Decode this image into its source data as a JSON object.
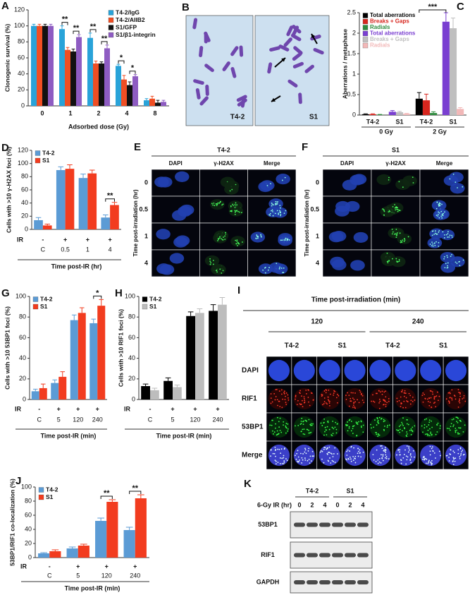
{
  "chart_data": [
    {
      "type": "bar",
      "panel": "A",
      "ylabel": "Clonogenic survival (%)",
      "xlabel": "Adsorbed dose (Gy)",
      "categories": [
        "0",
        "1",
        "2",
        "4",
        "8"
      ],
      "ylim": [
        0,
        120
      ],
      "yticks": [
        0,
        20,
        40,
        60,
        80,
        100,
        120
      ],
      "legend": "top-right",
      "series": [
        {
          "name": "T4-2/IgG",
          "color": "#29a3d9",
          "values": [
            100,
            96,
            85,
            50,
            7
          ],
          "errors": [
            2,
            4,
            6,
            2,
            2
          ]
        },
        {
          "name": "T4-2/AIIB2",
          "color": "#f04e23",
          "values": [
            100,
            70,
            53,
            33,
            9
          ],
          "errors": [
            2,
            3,
            3,
            5,
            3
          ]
        },
        {
          "name": "S1/GFP",
          "color": "#111111",
          "values": [
            100,
            68,
            53,
            26,
            4
          ],
          "errors": [
            2,
            3,
            2,
            4,
            3
          ]
        },
        {
          "name": "S1/β1-integrin",
          "color": "#8e5cc2",
          "values": [
            100,
            86,
            72,
            37,
            5
          ],
          "errors": [
            2,
            3,
            4,
            2,
            2
          ]
        }
      ],
      "annotations": [
        {
          "text": "**",
          "category": 1,
          "series": [
            0,
            1
          ]
        },
        {
          "text": "**",
          "category": 1,
          "series": [
            2,
            3
          ]
        },
        {
          "text": "**",
          "category": 2,
          "series": [
            0,
            1
          ]
        },
        {
          "text": "**",
          "category": 2,
          "series": [
            2,
            3
          ]
        },
        {
          "text": "*",
          "category": 3,
          "series": [
            0,
            1
          ]
        },
        {
          "text": "*",
          "category": 3,
          "series": [
            2,
            3
          ]
        }
      ]
    },
    {
      "type": "bar",
      "panel": "C",
      "ylabel": "Aberrations / metaphase",
      "categories": [
        "T4-2",
        "S1",
        "T4-2",
        "S1"
      ],
      "groups": [
        "0 Gy",
        "2 Gy"
      ],
      "ylim": [
        0,
        2.5
      ],
      "yticks": [
        0,
        0.5,
        1,
        1.5,
        2,
        2.5
      ],
      "legend": "top-left",
      "series": [
        {
          "name": "Total aberrations",
          "color": "#000000",
          "values": [
            0.02,
            null,
            0.4,
            null
          ],
          "errors": [
            0.01,
            null,
            0.15,
            null
          ]
        },
        {
          "name": "Breaks + Gaps",
          "color": "#d7261e",
          "values": [
            0.02,
            null,
            0.36,
            null
          ],
          "errors": [
            0.01,
            null,
            0.15,
            null
          ]
        },
        {
          "name": "Radials",
          "color": "#2e8b3e",
          "values": [
            0.01,
            null,
            0.05,
            null
          ],
          "errors": [
            0.005,
            null,
            0.03,
            null
          ]
        },
        {
          "name": "Total aberrations",
          "color": "#7a3fd1",
          "values": [
            null,
            0.08,
            null,
            2.28
          ],
          "errors": [
            null,
            0.03,
            null,
            0.22
          ]
        },
        {
          "name": "Breaks + Gaps",
          "color": "#bfbfbf",
          "values": [
            null,
            0.07,
            null,
            2.12
          ],
          "errors": [
            null,
            0.02,
            null,
            0.25
          ]
        },
        {
          "name": "Radials",
          "color": "#f2b8b8",
          "values": [
            null,
            0.03,
            null,
            0.15
          ],
          "errors": [
            null,
            0.01,
            null,
            0.03
          ]
        }
      ],
      "annotations": [
        {
          "text": "***",
          "categories": [
            2,
            3
          ]
        }
      ]
    },
    {
      "type": "bar",
      "panel": "D",
      "ylabel": "Cells with >10 γ-H2AX foci (%)",
      "xlabel": "Time post-IR (hr)",
      "ir_label": "IR",
      "ir": [
        "-",
        "+",
        "+",
        "+"
      ],
      "categories": [
        "C",
        "0.5",
        "1",
        "4"
      ],
      "ylim": [
        0,
        120
      ],
      "yticks": [
        0,
        20,
        40,
        60,
        80,
        100,
        120
      ],
      "legend": "top-left",
      "series": [
        {
          "name": "T4-2",
          "color": "#5b9bd5",
          "values": [
            14,
            90,
            78,
            18
          ],
          "errors": [
            4,
            5,
            6,
            4
          ]
        },
        {
          "name": "S1",
          "color": "#f23c1f",
          "values": [
            6,
            92,
            85,
            37
          ],
          "errors": [
            2,
            6,
            5,
            4
          ]
        }
      ],
      "annotations": [
        {
          "text": "**",
          "category": 3
        }
      ]
    },
    {
      "type": "bar",
      "panel": "G",
      "ylabel": "Cells with >10 53BP1 foci (%)",
      "xlabel": "Time post-IR (min)",
      "ir_label": "IR",
      "ir": [
        "-",
        "+",
        "+",
        "+"
      ],
      "categories": [
        "C",
        "5",
        "120",
        "240"
      ],
      "ylim": [
        0,
        100
      ],
      "yticks": [
        0,
        20,
        40,
        60,
        80,
        100
      ],
      "legend": "top-left",
      "series": [
        {
          "name": "T4-2",
          "color": "#5b9bd5",
          "values": [
            8,
            16,
            77,
            74
          ],
          "errors": [
            2,
            3,
            5,
            4
          ]
        },
        {
          "name": "S1",
          "color": "#f23c1f",
          "values": [
            11,
            22,
            84,
            91
          ],
          "errors": [
            4,
            5,
            5,
            6
          ]
        }
      ],
      "annotations": [
        {
          "text": "*",
          "category": 3
        }
      ]
    },
    {
      "type": "bar",
      "panel": "H",
      "ylabel": "Cells with >10 RIF1 foci (%)",
      "xlabel": "Time post-IR (min)",
      "ir_label": "IR",
      "ir": [
        "-",
        "+",
        "+",
        "+"
      ],
      "categories": [
        "C",
        "5",
        "120",
        "240"
      ],
      "ylim": [
        0,
        100
      ],
      "yticks": [
        0,
        20,
        40,
        60,
        80,
        100
      ],
      "legend": "top-left",
      "series": [
        {
          "name": "T4-2",
          "color": "#000000",
          "values": [
            13,
            18,
            81,
            86
          ],
          "errors": [
            2,
            3,
            4,
            6
          ]
        },
        {
          "name": "S1",
          "color": "#bdbdbd",
          "values": [
            9,
            12,
            84,
            92
          ],
          "errors": [
            2,
            2,
            4,
            7
          ]
        }
      ]
    },
    {
      "type": "bar",
      "panel": "J",
      "ylabel": "53BP1/RIF1 co-localization (%)",
      "xlabel": "Time post-IR (min)",
      "ir_label": "IR",
      "ir": [
        "-",
        "+",
        "+",
        "+"
      ],
      "categories": [
        "C",
        "5",
        "120",
        "240"
      ],
      "ylim": [
        0,
        100
      ],
      "yticks": [
        0,
        20,
        40,
        60,
        80,
        100
      ],
      "legend": "top-left",
      "series": [
        {
          "name": "T4-2",
          "color": "#5b9bd5",
          "values": [
            6,
            13,
            52,
            39
          ],
          "errors": [
            1,
            2,
            4,
            4
          ]
        },
        {
          "name": "S1",
          "color": "#f23c1f",
          "values": [
            9,
            17,
            79,
            84
          ],
          "errors": [
            2,
            2,
            3,
            5
          ]
        }
      ],
      "annotations": [
        {
          "text": "**",
          "category": 2
        },
        {
          "text": "**",
          "category": 3
        }
      ]
    }
  ],
  "figure_panels": {
    "B": {
      "panel": "B",
      "labels": [
        "T4-2",
        "S1"
      ]
    },
    "E": {
      "panel": "E",
      "title": "T4-2",
      "columns": [
        "DAPI",
        "γ-H2AX",
        "Merge"
      ],
      "rows": [
        "0",
        "0.5",
        "1",
        "4"
      ],
      "row_axis": "Time post-irradiation (hr)"
    },
    "F": {
      "panel": "F",
      "title": "S1",
      "columns": [
        "DAPI",
        "γ-H2AX",
        "Merge"
      ],
      "rows": [
        "0",
        "0.5",
        "1",
        "4"
      ],
      "row_axis": "Time post-irradiation (hr)"
    },
    "I": {
      "panel": "I",
      "title": "Time post-irradiation (min)",
      "times": [
        "120",
        "240"
      ],
      "columns": [
        "T4-2",
        "S1",
        "T4-2",
        "S1"
      ],
      "rows": [
        "DAPI",
        "RIF1",
        "53BP1",
        "Merge"
      ]
    },
    "K": {
      "panel": "K",
      "groups": [
        "T4-2",
        "S1"
      ],
      "lane_label": "6-Gy IR (hr)",
      "lanes": [
        "0",
        "2",
        "4",
        "0",
        "2",
        "4"
      ],
      "rows": [
        "53BP1",
        "RIF1",
        "GAPDH"
      ]
    }
  }
}
